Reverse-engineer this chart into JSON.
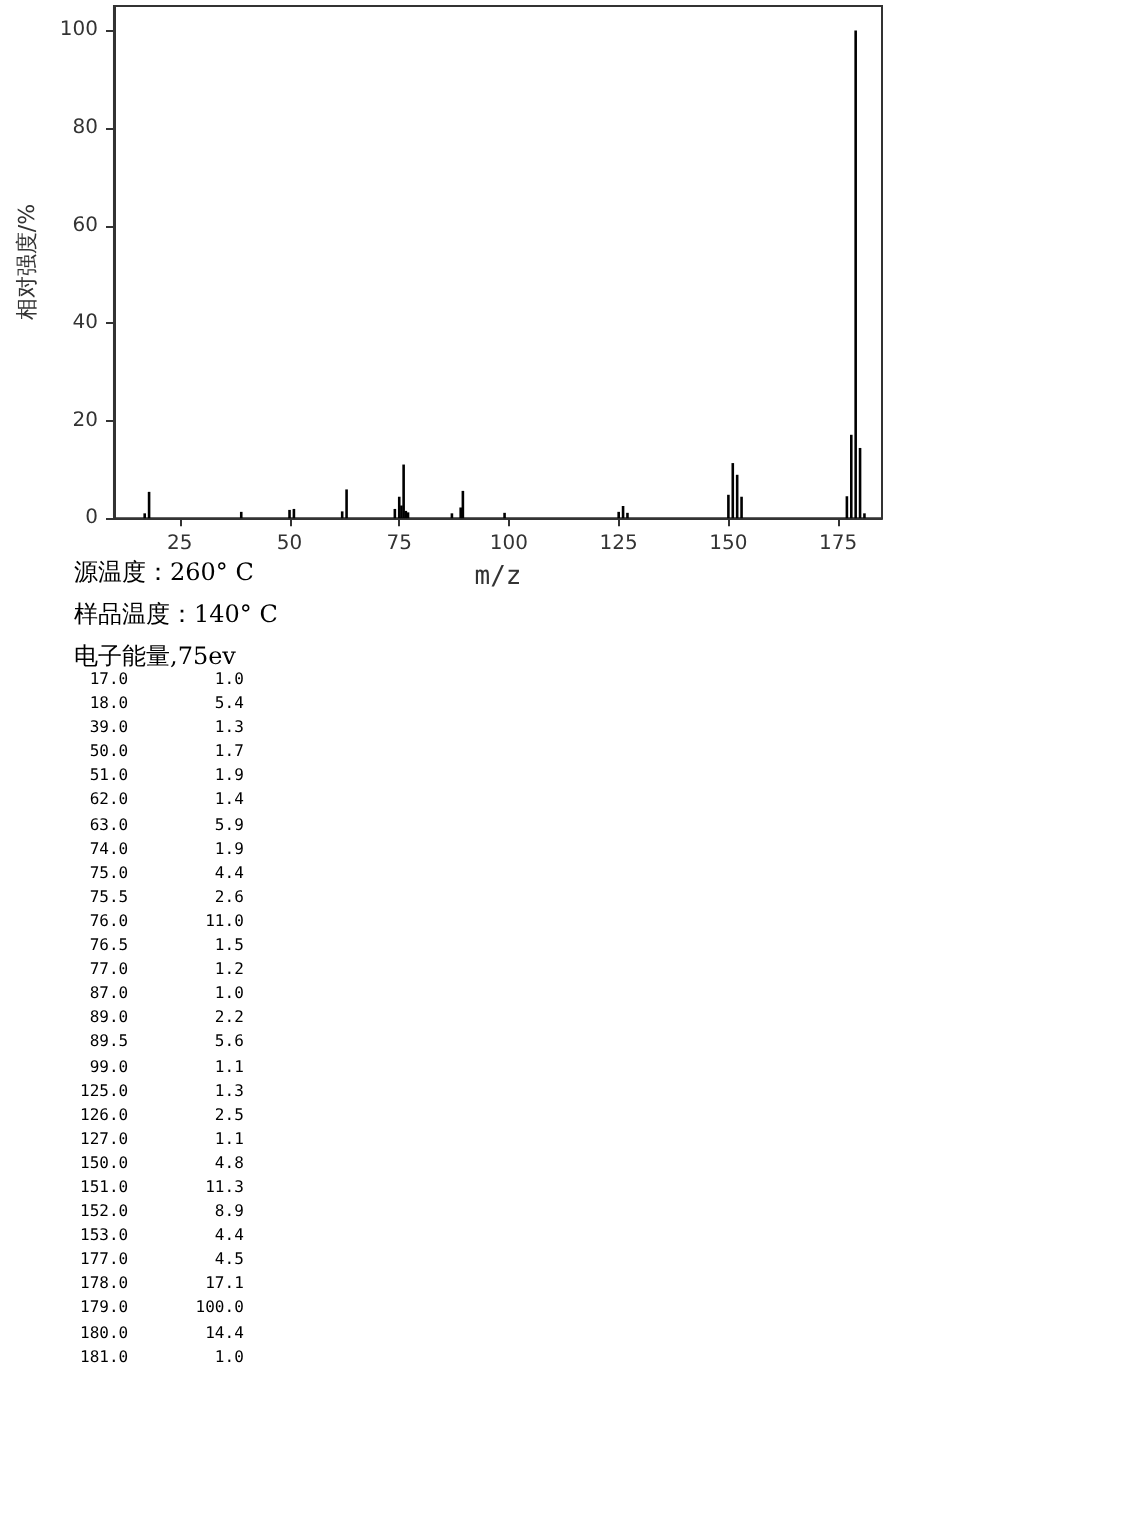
{
  "chart_data": {
    "type": "bar",
    "xlabel": "m/z",
    "ylabel": "相对强度/%",
    "x": [
      17,
      18,
      39,
      50,
      51,
      62,
      63,
      74,
      75,
      75.5,
      76,
      76.5,
      77,
      87,
      89,
      89.5,
      99,
      125,
      126,
      127,
      150,
      151,
      152,
      153,
      177,
      178,
      179,
      180,
      181
    ],
    "series": [
      {
        "color": "#000000",
        "values": [
          1.0,
          5.4,
          1.3,
          1.7,
          1.9,
          1.4,
          5.9,
          1.9,
          4.4,
          2.6,
          11.0,
          1.5,
          1.2,
          1.0,
          2.2,
          5.6,
          1.1,
          1.3,
          2.5,
          1.1,
          4.8,
          11.3,
          8.9,
          4.4,
          4.5,
          17.1,
          100.0,
          14.4,
          1.0
        ]
      }
    ],
    "xlim": [
      10,
      185
    ],
    "xticks": [
      25,
      50,
      75,
      100,
      125,
      150,
      175
    ],
    "ylim": [
      0,
      105
    ],
    "yticks": [
      0,
      20,
      40,
      60,
      80,
      100
    ],
    "grid": false,
    "annotations": [
      "源温度：260° C",
      "样品温度：140° C",
      "电子能量,75ev",
      " 17.0         1.0",
      " 18.0         5.4",
      " 39.0         1.3",
      " 50.0         1.7",
      " 51.0         1.9",
      " 62.0         1.4",
      " 63.0         5.9",
      " 74.0         1.9",
      " 75.0         4.4",
      " 75.5         2.6",
      " 76.0        11.0",
      " 76.5         1.5",
      " 77.0         1.2",
      " 87.0         1.0",
      " 89.0         2.2",
      " 89.5         5.6",
      " 99.0         1.1",
      "125.0         1.3",
      "126.0         2.5",
      "127.0         1.1",
      "150.0         4.8",
      "151.0        11.3",
      "152.0         8.9",
      "153.0         4.4",
      "177.0         4.5",
      "178.0        17.1",
      "179.0       100.0",
      "180.0        14.4",
      "181.0         1.0"
    ]
  }
}
